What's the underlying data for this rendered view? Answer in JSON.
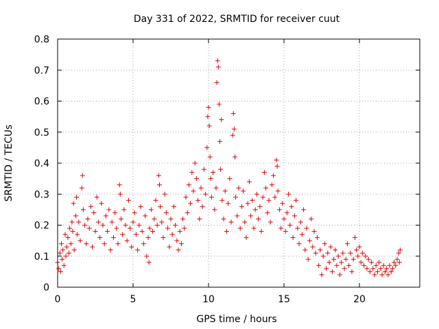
{
  "chart_data": {
    "type": "scatter",
    "title": "Day 331 of 2022, SRMTID for receiver cuut",
    "xlabel": "GPS time / hours",
    "ylabel": "SRMTID / TECUs",
    "xlim": [
      0,
      24
    ],
    "ylim": [
      0,
      0.8
    ],
    "xticks": [
      0,
      5,
      10,
      15,
      20
    ],
    "xtick_labels": [
      "0",
      "5",
      "10",
      "15",
      "20"
    ],
    "yticks": [
      0,
      0.1,
      0.2,
      0.3,
      0.4,
      0.5,
      0.6,
      0.7,
      0.8
    ],
    "ytick_labels": [
      "0",
      "0.1",
      "0.2",
      "0.3",
      "0.4",
      "0.5",
      "0.6",
      "0.7",
      "0.8"
    ],
    "grid": true,
    "marker": "plus",
    "color": "#dd0000",
    "series": [
      {
        "name": "SRMTID",
        "points": [
          [
            0.0,
            0.08
          ],
          [
            0.08,
            0.06
          ],
          [
            0.15,
            0.11
          ],
          [
            0.2,
            0.05
          ],
          [
            0.25,
            0.14
          ],
          [
            0.3,
            0.09
          ],
          [
            0.35,
            0.12
          ],
          [
            0.42,
            0.07
          ],
          [
            0.5,
            0.17
          ],
          [
            0.55,
            0.1
          ],
          [
            0.6,
            0.13
          ],
          [
            0.68,
            0.16
          ],
          [
            0.75,
            0.11
          ],
          [
            0.8,
            0.19
          ],
          [
            0.88,
            0.14
          ],
          [
            0.95,
            0.21
          ],
          [
            1.0,
            0.18
          ],
          [
            1.05,
            0.27
          ],
          [
            1.1,
            0.12
          ],
          [
            1.2,
            0.23
          ],
          [
            1.25,
            0.29
          ],
          [
            1.3,
            0.17
          ],
          [
            1.4,
            0.21
          ],
          [
            1.5,
            0.15
          ],
          [
            1.6,
            0.32
          ],
          [
            1.65,
            0.36
          ],
          [
            1.7,
            0.25
          ],
          [
            1.8,
            0.2
          ],
          [
            1.9,
            0.14
          ],
          [
            2.0,
            0.22
          ],
          [
            2.1,
            0.19
          ],
          [
            2.2,
            0.26
          ],
          [
            2.3,
            0.13
          ],
          [
            2.4,
            0.24
          ],
          [
            2.5,
            0.18
          ],
          [
            2.6,
            0.29
          ],
          [
            2.7,
            0.21
          ],
          [
            2.8,
            0.16
          ],
          [
            2.9,
            0.27
          ],
          [
            3.0,
            0.2
          ],
          [
            3.1,
            0.14
          ],
          [
            3.2,
            0.23
          ],
          [
            3.3,
            0.18
          ],
          [
            3.4,
            0.25
          ],
          [
            3.5,
            0.12
          ],
          [
            3.6,
            0.21
          ],
          [
            3.7,
            0.16
          ],
          [
            3.8,
            0.24
          ],
          [
            3.9,
            0.19
          ],
          [
            4.0,
            0.14
          ],
          [
            4.1,
            0.33
          ],
          [
            4.15,
            0.3
          ],
          [
            4.2,
            0.22
          ],
          [
            4.3,
            0.17
          ],
          [
            4.4,
            0.25
          ],
          [
            4.5,
            0.2
          ],
          [
            4.6,
            0.15
          ],
          [
            4.7,
            0.28
          ],
          [
            4.8,
            0.19
          ],
          [
            4.9,
            0.13
          ],
          [
            5.0,
            0.21
          ],
          [
            5.1,
            0.24
          ],
          [
            5.2,
            0.17
          ],
          [
            5.3,
            0.12
          ],
          [
            5.4,
            0.2
          ],
          [
            5.5,
            0.26
          ],
          [
            5.6,
            0.18
          ],
          [
            5.7,
            0.14
          ],
          [
            5.8,
            0.23
          ],
          [
            5.9,
            0.1
          ],
          [
            6.0,
            0.16
          ],
          [
            6.05,
            0.08
          ],
          [
            6.1,
            0.19
          ],
          [
            6.2,
            0.25
          ],
          [
            6.3,
            0.18
          ],
          [
            6.4,
            0.22
          ],
          [
            6.5,
            0.28
          ],
          [
            6.6,
            0.2
          ],
          [
            6.7,
            0.36
          ],
          [
            6.75,
            0.33
          ],
          [
            6.8,
            0.26
          ],
          [
            6.9,
            0.21
          ],
          [
            7.0,
            0.16
          ],
          [
            7.1,
            0.3
          ],
          [
            7.2,
            0.24
          ],
          [
            7.3,
            0.19
          ],
          [
            7.4,
            0.13
          ],
          [
            7.5,
            0.22
          ],
          [
            7.6,
            0.17
          ],
          [
            7.7,
            0.26
          ],
          [
            7.8,
            0.2
          ],
          [
            7.9,
            0.15
          ],
          [
            8.0,
            0.12
          ],
          [
            8.1,
            0.18
          ],
          [
            8.2,
            0.14
          ],
          [
            8.3,
            0.22
          ],
          [
            8.4,
            0.19
          ],
          [
            8.5,
            0.29
          ],
          [
            8.6,
            0.24
          ],
          [
            8.7,
            0.33
          ],
          [
            8.8,
            0.27
          ],
          [
            8.9,
            0.37
          ],
          [
            9.0,
            0.31
          ],
          [
            9.1,
            0.4
          ],
          [
            9.2,
            0.35
          ],
          [
            9.3,
            0.28
          ],
          [
            9.4,
            0.22
          ],
          [
            9.5,
            0.32
          ],
          [
            9.6,
            0.26
          ],
          [
            9.7,
            0.38
          ],
          [
            9.8,
            0.3
          ],
          [
            9.9,
            0.45
          ],
          [
            9.95,
            0.55
          ],
          [
            10.0,
            0.58
          ],
          [
            10.05,
            0.52
          ],
          [
            10.1,
            0.42
          ],
          [
            10.15,
            0.35
          ],
          [
            10.2,
            0.29
          ],
          [
            10.3,
            0.37
          ],
          [
            10.4,
            0.25
          ],
          [
            10.5,
            0.32
          ],
          [
            10.55,
            0.66
          ],
          [
            10.6,
            0.73
          ],
          [
            10.65,
            0.71
          ],
          [
            10.7,
            0.59
          ],
          [
            10.75,
            0.47
          ],
          [
            10.8,
            0.38
          ],
          [
            10.85,
            0.54
          ],
          [
            10.9,
            0.28
          ],
          [
            11.0,
            0.22
          ],
          [
            11.1,
            0.31
          ],
          [
            11.2,
            0.18
          ],
          [
            11.3,
            0.27
          ],
          [
            11.4,
            0.35
          ],
          [
            11.5,
            0.21
          ],
          [
            11.6,
            0.49
          ],
          [
            11.65,
            0.56
          ],
          [
            11.7,
            0.51
          ],
          [
            11.75,
            0.42
          ],
          [
            11.8,
            0.29
          ],
          [
            11.9,
            0.23
          ],
          [
            12.0,
            0.32
          ],
          [
            12.1,
            0.19
          ],
          [
            12.2,
            0.26
          ],
          [
            12.3,
            0.31
          ],
          [
            12.4,
            0.21
          ],
          [
            12.5,
            0.16
          ],
          [
            12.6,
            0.27
          ],
          [
            12.7,
            0.34
          ],
          [
            12.8,
            0.23
          ],
          [
            12.9,
            0.28
          ],
          [
            13.0,
            0.19
          ],
          [
            13.1,
            0.25
          ],
          [
            13.2,
            0.3
          ],
          [
            13.3,
            0.22
          ],
          [
            13.4,
            0.26
          ],
          [
            13.5,
            0.18
          ],
          [
            13.6,
            0.29
          ],
          [
            13.7,
            0.37
          ],
          [
            13.8,
            0.32
          ],
          [
            13.9,
            0.24
          ],
          [
            14.0,
            0.28
          ],
          [
            14.1,
            0.21
          ],
          [
            14.2,
            0.33
          ],
          [
            14.3,
            0.36
          ],
          [
            14.4,
            0.29
          ],
          [
            14.5,
            0.41
          ],
          [
            14.55,
            0.39
          ],
          [
            14.6,
            0.31
          ],
          [
            14.7,
            0.25
          ],
          [
            14.8,
            0.19
          ],
          [
            14.9,
            0.27
          ],
          [
            15.0,
            0.22
          ],
          [
            15.1,
            0.18
          ],
          [
            15.2,
            0.24
          ],
          [
            15.3,
            0.3
          ],
          [
            15.4,
            0.2
          ],
          [
            15.5,
            0.26
          ],
          [
            15.6,
            0.16
          ],
          [
            15.7,
            0.23
          ],
          [
            15.8,
            0.28
          ],
          [
            15.9,
            0.19
          ],
          [
            16.0,
            0.14
          ],
          [
            16.1,
            0.21
          ],
          [
            16.2,
            0.17
          ],
          [
            16.3,
            0.25
          ],
          [
            16.4,
            0.12
          ],
          [
            16.5,
            0.19
          ],
          [
            16.6,
            0.09
          ],
          [
            16.7,
            0.15
          ],
          [
            16.8,
            0.22
          ],
          [
            16.9,
            0.13
          ],
          [
            17.0,
            0.18
          ],
          [
            17.1,
            0.11
          ],
          [
            17.2,
            0.16
          ],
          [
            17.3,
            0.07
          ],
          [
            17.4,
            0.12
          ],
          [
            17.5,
            0.04
          ],
          [
            17.6,
            0.1
          ],
          [
            17.7,
            0.14
          ],
          [
            17.8,
            0.06
          ],
          [
            17.9,
            0.11
          ],
          [
            18.0,
            0.08
          ],
          [
            18.1,
            0.13
          ],
          [
            18.2,
            0.05
          ],
          [
            18.3,
            0.09
          ],
          [
            18.4,
            0.12
          ],
          [
            18.5,
            0.07
          ],
          [
            18.6,
            0.1
          ],
          [
            18.7,
            0.04
          ],
          [
            18.8,
            0.08
          ],
          [
            18.9,
            0.11
          ],
          [
            19.0,
            0.06
          ],
          [
            19.1,
            0.09
          ],
          [
            19.2,
            0.14
          ],
          [
            19.3,
            0.07
          ],
          [
            19.4,
            0.11
          ],
          [
            19.5,
            0.05
          ],
          [
            19.6,
            0.09
          ],
          [
            19.7,
            0.16
          ],
          [
            19.8,
            0.12
          ],
          [
            19.9,
            0.1
          ],
          [
            20.0,
            0.13
          ],
          [
            20.1,
            0.08
          ],
          [
            20.2,
            0.11
          ],
          [
            20.3,
            0.07
          ],
          [
            20.4,
            0.1
          ],
          [
            20.5,
            0.06
          ],
          [
            20.6,
            0.09
          ],
          [
            20.7,
            0.05
          ],
          [
            20.8,
            0.08
          ],
          [
            20.9,
            0.06
          ],
          [
            21.0,
            0.04
          ],
          [
            21.1,
            0.07
          ],
          [
            21.2,
            0.05
          ],
          [
            21.3,
            0.08
          ],
          [
            21.4,
            0.06
          ],
          [
            21.5,
            0.04
          ],
          [
            21.6,
            0.07
          ],
          [
            21.7,
            0.05
          ],
          [
            21.8,
            0.06
          ],
          [
            21.9,
            0.04
          ],
          [
            22.0,
            0.07
          ],
          [
            22.1,
            0.05
          ],
          [
            22.2,
            0.06
          ],
          [
            22.3,
            0.08
          ],
          [
            22.4,
            0.07
          ],
          [
            22.5,
            0.09
          ],
          [
            22.6,
            0.11
          ],
          [
            22.65,
            0.08
          ],
          [
            22.7,
            0.12
          ]
        ]
      }
    ]
  }
}
